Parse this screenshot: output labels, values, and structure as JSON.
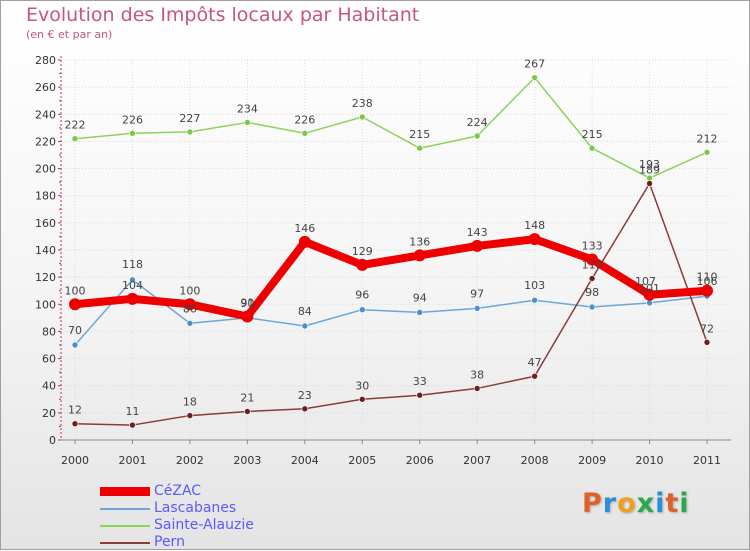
{
  "header": {
    "title": "Evolution des Impôts locaux par Habitant",
    "subtitle": "(en € et par an)"
  },
  "brand": {
    "text": "Proxiti",
    "letter_colors": [
      "#e0602a",
      "#2a8fd8",
      "#f0a020",
      "#2aa84a",
      "#2a8fd8",
      "#e0602a",
      "#2aa84a"
    ]
  },
  "chart_data": {
    "type": "line",
    "title": "Evolution des Impôts locaux par Habitant",
    "subtitle": "(en € et par an)",
    "xlabel": "",
    "ylabel": "",
    "ylim": [
      0,
      280
    ],
    "yticks": [
      0,
      20,
      40,
      60,
      80,
      100,
      120,
      140,
      160,
      180,
      200,
      220,
      240,
      260,
      280
    ],
    "grid": true,
    "legend_position": "bottom-left",
    "categories": [
      "2000",
      "2001",
      "2002",
      "2003",
      "2004",
      "2005",
      "2006",
      "2007",
      "2008",
      "2009",
      "2010",
      "2011"
    ],
    "series": [
      {
        "name": "Sainte-Alauzie",
        "color": "#8bd35a",
        "marker_color": "#7ac84a",
        "weight": "thin",
        "values": [
          222,
          226,
          227,
          234,
          226,
          238,
          215,
          224,
          267,
          215,
          193,
          212
        ],
        "labels": [
          "222",
          "226",
          "227",
          "234",
          "226",
          "238",
          "215",
          "224",
          "267",
          "215",
          "193",
          "212"
        ]
      },
      {
        "name": "Lascabanes",
        "color": "#6ea6d8",
        "marker_color": "#4a8fd0",
        "weight": "thin",
        "values": [
          70,
          118,
          86,
          90,
          84,
          96,
          94,
          97,
          103,
          98,
          101,
          106
        ],
        "labels": [
          "70",
          "118",
          "86",
          "90",
          "84",
          "96",
          "94",
          "97",
          "103",
          "98",
          "101",
          "106"
        ]
      },
      {
        "name": "Pern",
        "color": "#8b3a3a",
        "marker_color": "#6e1e1e",
        "weight": "thin",
        "values": [
          12,
          11,
          18,
          21,
          23,
          30,
          33,
          38,
          47,
          119,
          189,
          72
        ],
        "labels": [
          "12",
          "11",
          "18",
          "21",
          "23",
          "30",
          "33",
          "38",
          "47",
          "119",
          "189",
          "72"
        ]
      },
      {
        "name": "CéZAC",
        "color": "#ee0000",
        "marker_color": "#ee0000",
        "weight": "thick",
        "values": [
          100,
          104,
          100,
          91,
          146,
          129,
          136,
          143,
          148,
          133,
          107,
          110
        ],
        "labels": [
          "100",
          "104",
          "100",
          "91",
          "146",
          "129",
          "136",
          "143",
          "148",
          "133",
          "107",
          "110"
        ]
      }
    ]
  },
  "legend": {
    "items": [
      {
        "label": "CéZAC",
        "color": "#ee0000",
        "weight": "thick"
      },
      {
        "label": "Lascabanes",
        "color": "#6ea6d8",
        "weight": "thin"
      },
      {
        "label": "Sainte-Alauzie",
        "color": "#8bd35a",
        "weight": "thin"
      },
      {
        "label": "Pern",
        "color": "#8b3a3a",
        "weight": "thin"
      }
    ]
  }
}
